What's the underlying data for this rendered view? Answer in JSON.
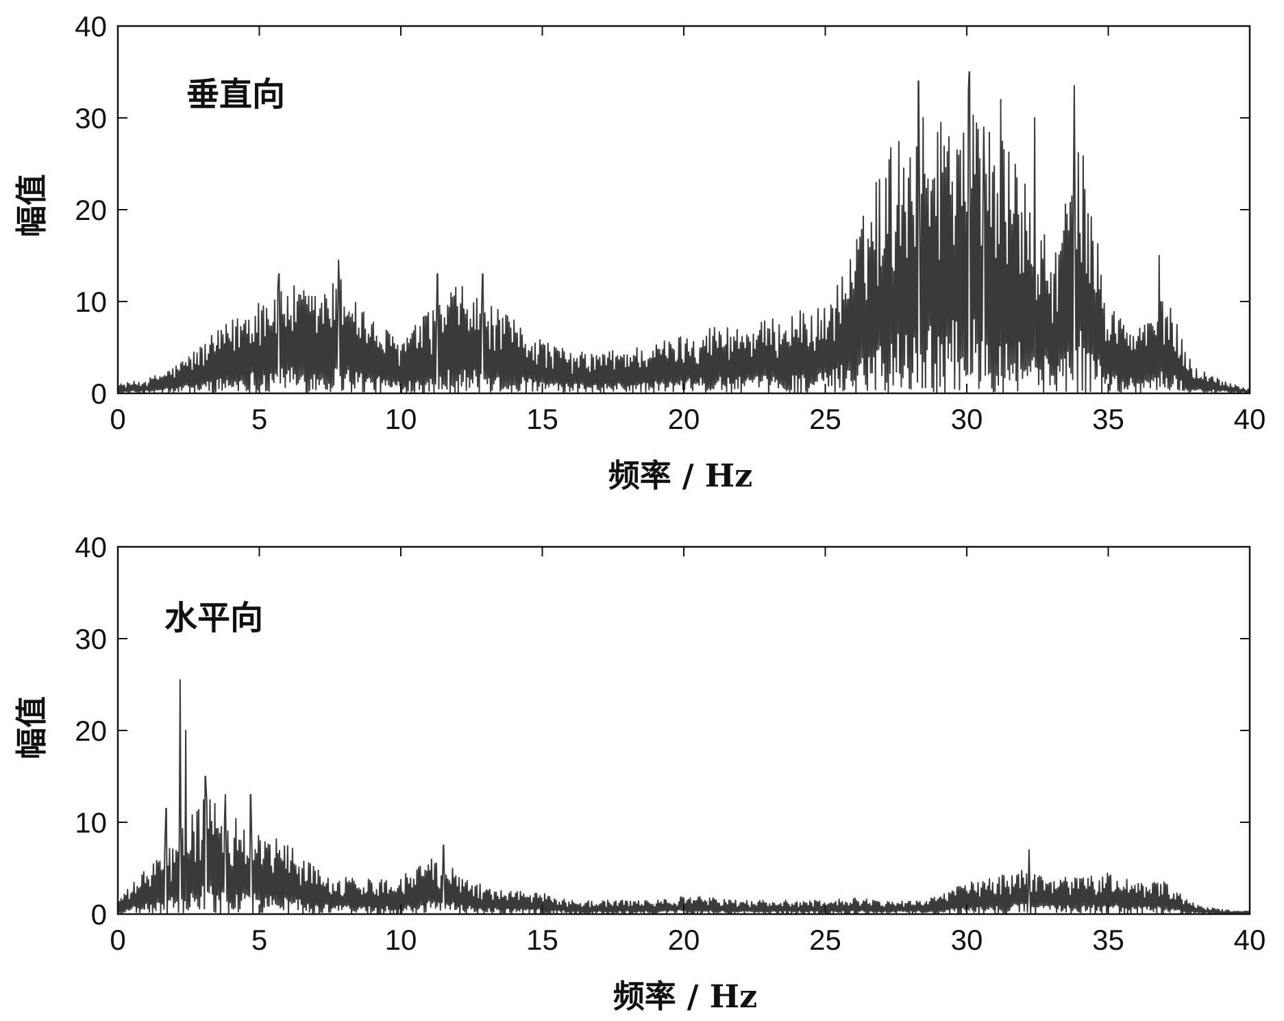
{
  "chart_data": [
    {
      "type": "line",
      "annotation": "垂直向",
      "xlabel": "频率 / Hz",
      "ylabel": "幅值",
      "xlim": [
        0,
        40
      ],
      "ylim": [
        0,
        40
      ],
      "xticks": [
        0,
        5,
        10,
        15,
        20,
        25,
        30,
        35,
        40
      ],
      "yticks": [
        0,
        10,
        20,
        30,
        40
      ],
      "grid": false,
      "line_color": "#3a3a3a",
      "envelope": {
        "x": [
          0,
          1,
          2,
          3,
          4,
          5,
          6,
          7,
          8,
          9,
          10,
          11,
          12,
          13,
          14,
          15,
          16,
          17,
          18,
          19,
          20,
          21,
          22,
          23,
          24,
          25,
          26,
          27,
          28,
          29,
          30,
          31,
          32,
          33,
          34,
          35,
          36,
          37,
          38,
          39,
          40
        ],
        "y": [
          1,
          1.5,
          3,
          5.5,
          8,
          11,
          12,
          11,
          13,
          8,
          6,
          9,
          12,
          10,
          8,
          6,
          4.5,
          4.5,
          5,
          5.5,
          6.5,
          7.5,
          7.5,
          8,
          9,
          9.5,
          16,
          26,
          30,
          31,
          34,
          29,
          24,
          15,
          28,
          10,
          7,
          11,
          3,
          1.5,
          0.5
        ]
      },
      "peaks": [
        {
          "x": 5.7,
          "y": 13
        },
        {
          "x": 7.8,
          "y": 14.5
        },
        {
          "x": 11.3,
          "y": 13
        },
        {
          "x": 12.9,
          "y": 13
        },
        {
          "x": 28.3,
          "y": 34
        },
        {
          "x": 30.1,
          "y": 35
        },
        {
          "x": 30.6,
          "y": 29
        },
        {
          "x": 31.2,
          "y": 32
        },
        {
          "x": 32.4,
          "y": 30
        },
        {
          "x": 33.8,
          "y": 33.5
        },
        {
          "x": 36.8,
          "y": 15
        }
      ]
    },
    {
      "type": "line",
      "annotation": "水平向",
      "xlabel": "频率 / Hz",
      "ylabel": "幅值",
      "xlim": [
        0,
        40
      ],
      "ylim": [
        0,
        40
      ],
      "xticks": [
        0,
        5,
        10,
        15,
        20,
        25,
        30,
        35,
        40
      ],
      "yticks": [
        0,
        10,
        20,
        30,
        40
      ],
      "grid": false,
      "line_color": "#3a3a3a",
      "envelope": {
        "x": [
          0,
          1,
          2,
          3,
          4,
          5,
          6,
          7,
          8,
          9,
          10,
          11,
          12,
          13,
          14,
          15,
          16,
          17,
          18,
          19,
          20,
          21,
          22,
          23,
          24,
          25,
          26,
          27,
          28,
          29,
          30,
          31,
          32,
          33,
          34,
          35,
          36,
          37,
          38,
          39,
          40
        ],
        "y": [
          1.5,
          5,
          8,
          13,
          11,
          9,
          8,
          5,
          4,
          4,
          4,
          6.5,
          5,
          3,
          2.5,
          2.5,
          1.5,
          1.5,
          1.5,
          1.5,
          2,
          1.8,
          1.5,
          1.5,
          1.5,
          1.5,
          1.8,
          1.5,
          1.5,
          2,
          3.5,
          4,
          5,
          4,
          4,
          4.5,
          3.5,
          3.5,
          1.2,
          0.5,
          0.3
        ]
      },
      "peaks": [
        {
          "x": 2.2,
          "y": 25.5
        },
        {
          "x": 2.4,
          "y": 20
        },
        {
          "x": 3.1,
          "y": 15
        },
        {
          "x": 1.7,
          "y": 11.5
        },
        {
          "x": 3.8,
          "y": 13
        },
        {
          "x": 4.7,
          "y": 13
        },
        {
          "x": 11.5,
          "y": 7.5
        },
        {
          "x": 32.2,
          "y": 7
        }
      ]
    }
  ]
}
